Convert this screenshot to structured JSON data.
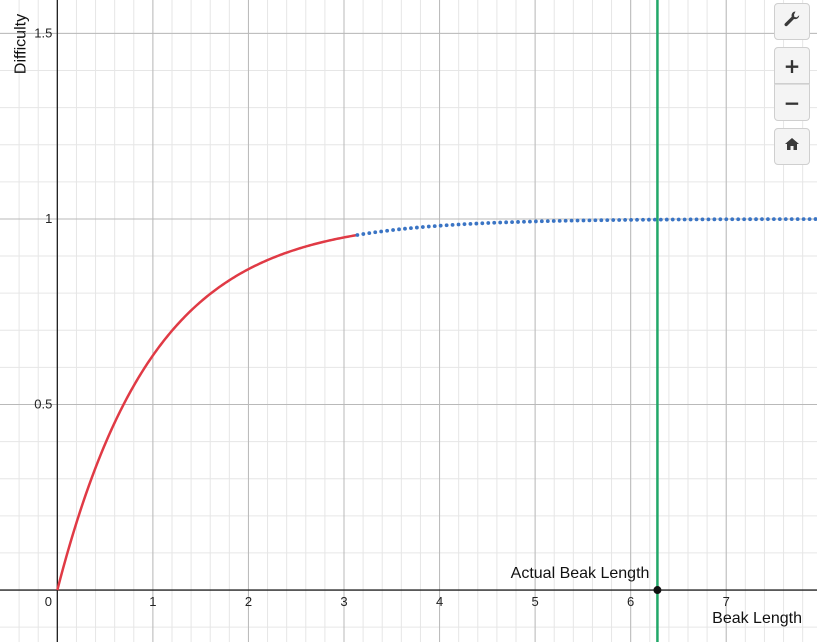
{
  "chart_data": {
    "type": "line",
    "title": "",
    "xlabel": "Beak Length",
    "ylabel": "Difficulty",
    "xlim": [
      -0.6,
      7.95
    ],
    "ylim": [
      -0.14,
      1.59
    ],
    "grid": true,
    "x_ticks": [
      {
        "value": 0,
        "label": "0"
      },
      {
        "value": 1,
        "label": "1"
      },
      {
        "value": 2,
        "label": "2"
      },
      {
        "value": 3,
        "label": "3"
      },
      {
        "value": 4,
        "label": "4"
      },
      {
        "value": 5,
        "label": "5"
      },
      {
        "value": 6,
        "label": "6"
      },
      {
        "value": 7,
        "label": "7"
      }
    ],
    "y_ticks": [
      {
        "value": 0.5,
        "label": "0.5"
      },
      {
        "value": 1,
        "label": "1"
      },
      {
        "value": 1.5,
        "label": "1.5"
      }
    ],
    "series": [
      {
        "function": "1 - exp(-x)",
        "style": "solid",
        "color": "#e03a45",
        "x_range": [
          0,
          3.14
        ]
      },
      {
        "function": "1 - exp(-x)",
        "style": "dotted",
        "color": "#3a74c4",
        "x_range": [
          3.14,
          7.95
        ]
      }
    ],
    "vertical_line": {
      "x": 6.28,
      "color": "#22a869"
    },
    "annotation": {
      "text": "Actual Beak Length",
      "x": 6.28,
      "y": 0,
      "point_color": "#111111"
    }
  },
  "toolbar": {
    "settings_icon": "wrench-icon",
    "zoom_in_label": "+",
    "zoom_out_label": "−",
    "home_icon": "home-icon"
  }
}
